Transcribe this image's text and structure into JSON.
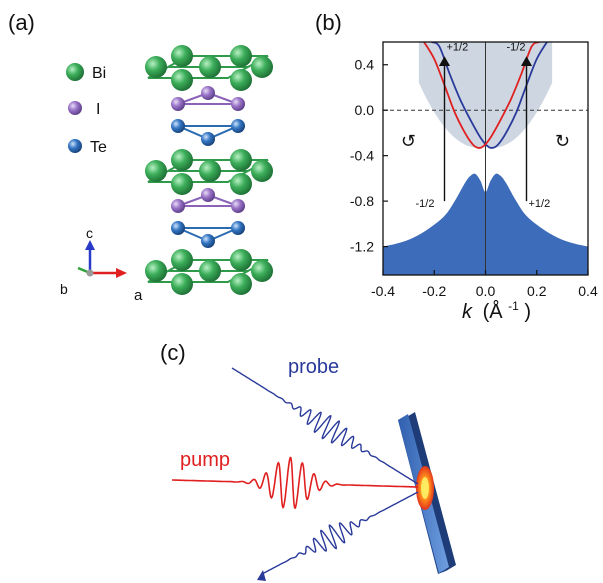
{
  "panels": {
    "a": "(a)",
    "b": "(b)",
    "c": "(c)"
  },
  "crystal": {
    "legend": [
      {
        "label": "Bi",
        "color": "#2e9a4a"
      },
      {
        "label": "I",
        "color": "#8a63b8"
      },
      {
        "label": "Te",
        "color": "#2a6bb3"
      }
    ],
    "axes": {
      "c": "c",
      "b": "b",
      "a": "a"
    }
  },
  "chart_data": {
    "type": "line",
    "xlabel_main": "k",
    "xlabel_unit": "(Å",
    "xlabel_sup": "-1",
    "xlabel_close": ")",
    "xlim": [
      -0.4,
      0.4
    ],
    "ylim": [
      -1.45,
      0.6
    ],
    "xticks": [
      -0.4,
      -0.2,
      0.0,
      0.2,
      0.4
    ],
    "xtick_labels": [
      "-0.4",
      "-0.2",
      "0.0",
      "0.2",
      "0.4"
    ],
    "yticks": [
      0.4,
      0.0,
      -0.4,
      -0.8,
      -1.2
    ],
    "ytick_labels": [
      "0.4",
      "0.0",
      "-0.4",
      "-0.8",
      "-1.2"
    ],
    "series": [
      {
        "color": "#e02020",
        "x": [
          -0.24,
          -0.2,
          -0.16,
          -0.12,
          -0.08,
          -0.05,
          -0.03,
          -0.01,
          0.02,
          0.06,
          0.1,
          0.14,
          0.18,
          0.21
        ],
        "y": [
          0.6,
          0.45,
          0.22,
          -0.02,
          -0.2,
          -0.3,
          -0.33,
          -0.32,
          -0.24,
          -0.08,
          0.1,
          0.32,
          0.56,
          0.6
        ]
      },
      {
        "color": "#2a3a9a",
        "x": [
          -0.21,
          -0.18,
          -0.14,
          -0.1,
          -0.06,
          -0.02,
          0.01,
          0.03,
          0.05,
          0.08,
          0.12,
          0.16,
          0.2,
          0.24
        ],
        "y": [
          0.6,
          0.56,
          0.32,
          0.1,
          -0.08,
          -0.24,
          -0.32,
          -0.33,
          -0.3,
          -0.2,
          -0.02,
          0.22,
          0.45,
          0.6
        ]
      }
    ],
    "valence_band": {
      "color": "#3d6cba",
      "x": [
        -0.4,
        -0.34,
        -0.28,
        -0.22,
        -0.16,
        -0.12,
        -0.08,
        -0.06,
        -0.04,
        -0.02,
        0.0,
        0.02,
        0.04,
        0.06,
        0.08,
        0.12,
        0.16,
        0.22,
        0.28,
        0.34,
        0.4
      ],
      "y": [
        -1.2,
        -1.17,
        -1.12,
        -1.04,
        -0.93,
        -0.8,
        -0.64,
        -0.58,
        -0.56,
        -0.62,
        -0.72,
        -0.62,
        -0.56,
        -0.58,
        -0.64,
        -0.8,
        -0.93,
        -1.04,
        -1.12,
        -1.17,
        -1.2
      ]
    },
    "fermi_level": 0.0,
    "arrows": [
      {
        "x": -0.16,
        "y_from": -0.8,
        "y_to": 0.48,
        "label_bottom": "-1/2",
        "label_top": "+1/2"
      },
      {
        "x": 0.16,
        "y_from": -0.8,
        "y_to": 0.48,
        "label_bottom": "+1/2",
        "label_top": "-1/2"
      }
    ],
    "rotation_symbols": [
      {
        "x": -0.3,
        "y": -0.27,
        "symbol": "↻"
      },
      {
        "x": 0.3,
        "y": -0.27,
        "symbol": "↻"
      }
    ]
  },
  "pump_probe": {
    "probe": "probe",
    "pump": "pump"
  }
}
